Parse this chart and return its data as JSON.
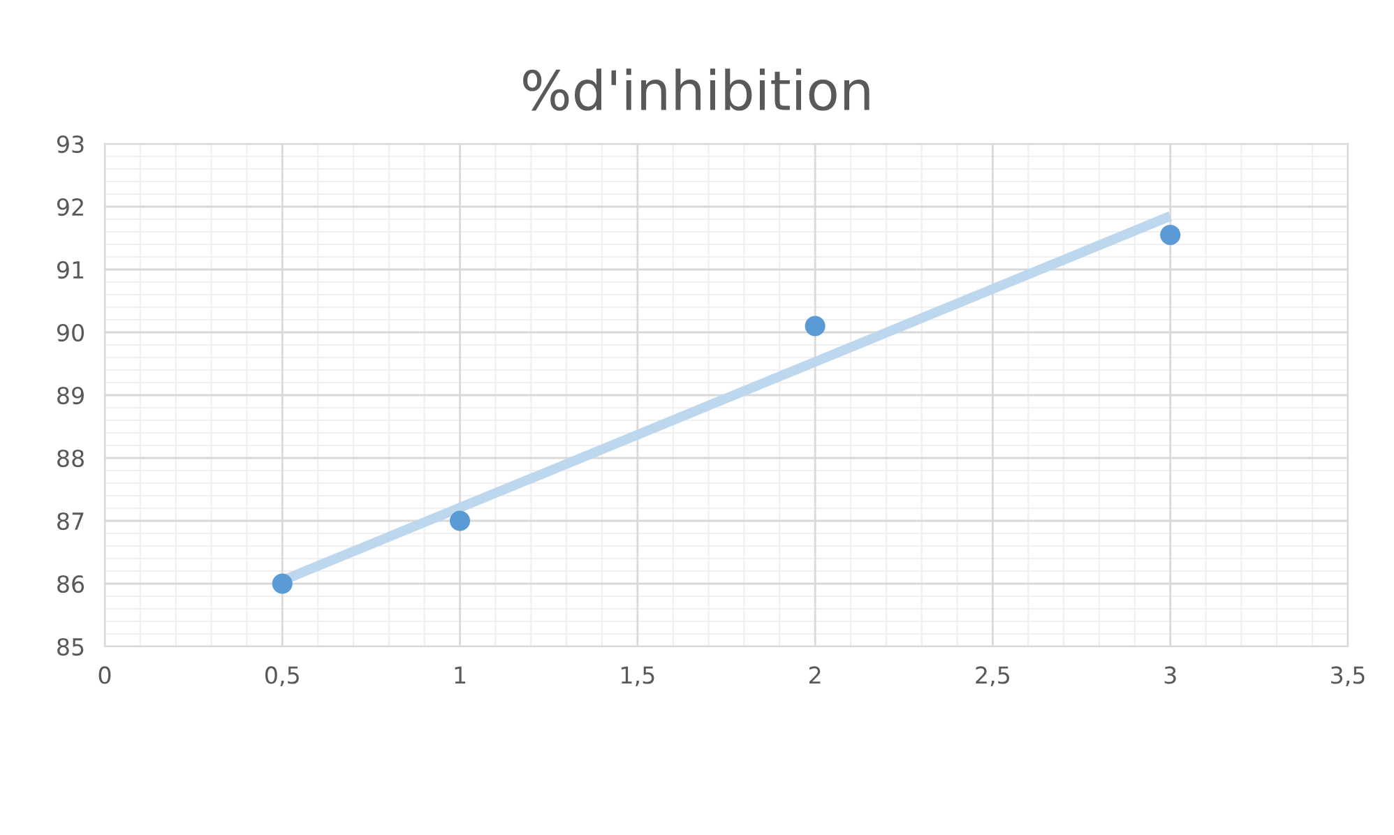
{
  "chart_data": {
    "type": "scatter",
    "title": "%d'inhibition",
    "series": [
      {
        "color": "#5b9bd5",
        "marker": "circle",
        "x": [
          0.5,
          1,
          2,
          3
        ],
        "values": [
          86.0,
          87.0,
          90.1,
          91.55
        ]
      },
      {
        "type": "line",
        "color": "#bdd7ee",
        "marker": "none",
        "line_style": "solid",
        "x": [
          0.5,
          3
        ],
        "values": [
          86.05,
          91.85
        ]
      }
    ],
    "xlim": [
      0,
      3.5
    ],
    "xticks": [
      0,
      {
        "value": 0.5,
        "label": "0,5"
      },
      1,
      {
        "value": 1.5,
        "label": "1,5"
      },
      2,
      {
        "value": 2.5,
        "label": "2,5"
      },
      3,
      {
        "value": 3.5,
        "label": "3,5"
      }
    ],
    "ylim": [
      85,
      93
    ],
    "yticks": [
      85,
      86,
      87,
      88,
      89,
      90,
      91,
      92,
      93
    ],
    "grid": true
  }
}
